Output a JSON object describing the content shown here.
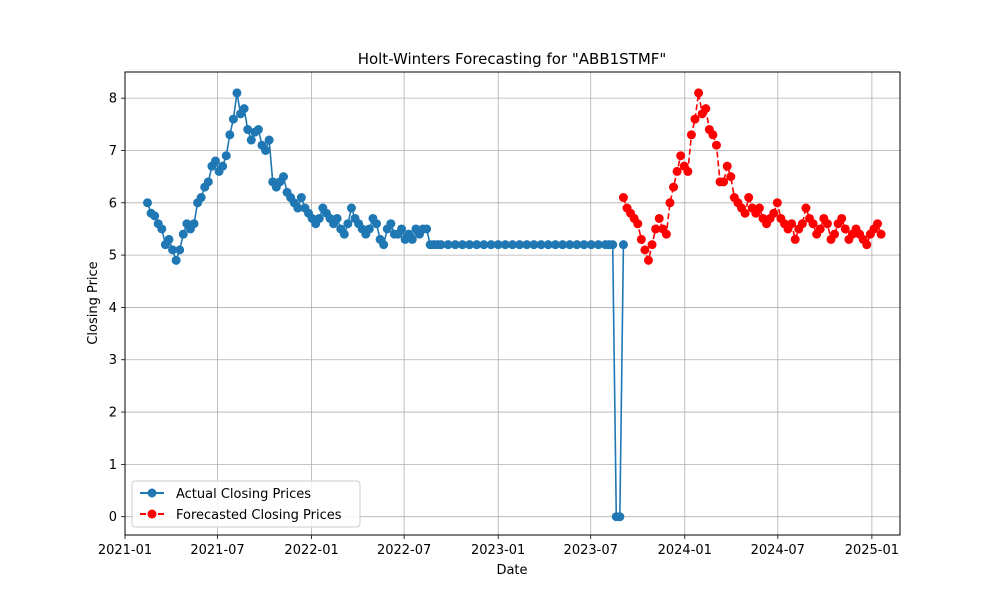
{
  "chart_data": {
    "type": "line",
    "title": "Holt-Winters Forecasting for \"ABB1STMF\"",
    "xlabel": "Date",
    "ylabel": "Closing Price",
    "x_type": "date",
    "xlim": [
      "2021-01-01",
      "2025-02-25"
    ],
    "ylim": [
      -0.35,
      8.5
    ],
    "x_ticks": [
      "2021-01",
      "2021-07",
      "2022-01",
      "2022-07",
      "2023-01",
      "2023-07",
      "2024-01",
      "2024-07",
      "2025-01"
    ],
    "y_ticks": [
      0,
      1,
      2,
      3,
      4,
      5,
      6,
      7,
      8
    ],
    "grid": true,
    "legend_position": "lower-left",
    "series": [
      {
        "name": "Actual Closing Prices",
        "color": "#1f77b4",
        "line_style": "solid",
        "marker": "circle",
        "x": [
          "2021-02-14",
          "2021-02-21",
          "2021-02-28",
          "2021-03-07",
          "2021-03-14",
          "2021-03-21",
          "2021-03-28",
          "2021-04-04",
          "2021-04-11",
          "2021-04-18",
          "2021-04-25",
          "2021-05-02",
          "2021-05-09",
          "2021-05-16",
          "2021-05-23",
          "2021-05-30",
          "2021-06-06",
          "2021-06-13",
          "2021-06-20",
          "2021-06-27",
          "2021-07-04",
          "2021-07-11",
          "2021-07-18",
          "2021-07-25",
          "2021-08-01",
          "2021-08-08",
          "2021-08-15",
          "2021-08-22",
          "2021-08-29",
          "2021-09-05",
          "2021-09-12",
          "2021-09-19",
          "2021-09-26",
          "2021-10-03",
          "2021-10-10",
          "2021-10-17",
          "2021-10-24",
          "2021-10-31",
          "2021-11-07",
          "2021-11-14",
          "2021-11-21",
          "2021-11-28",
          "2021-12-05",
          "2021-12-12",
          "2021-12-19",
          "2021-12-26",
          "2022-01-02",
          "2022-01-09",
          "2022-01-16",
          "2022-01-23",
          "2022-01-30",
          "2022-02-06",
          "2022-02-13",
          "2022-02-20",
          "2022-02-27",
          "2022-03-06",
          "2022-03-13",
          "2022-03-20",
          "2022-03-27",
          "2022-04-03",
          "2022-04-10",
          "2022-04-17",
          "2022-04-24",
          "2022-05-01",
          "2022-05-08",
          "2022-05-15",
          "2022-05-22",
          "2022-05-29",
          "2022-06-05",
          "2022-06-12",
          "2022-06-19",
          "2022-06-26",
          "2022-07-03",
          "2022-07-10",
          "2022-07-17",
          "2022-07-24",
          "2022-07-31",
          "2022-08-07",
          "2022-08-14",
          "2022-08-21",
          "2022-08-28",
          "2022-09-04",
          "2022-09-11",
          "2022-09-25",
          "2022-10-09",
          "2022-10-23",
          "2022-11-06",
          "2022-11-20",
          "2022-12-04",
          "2022-12-18",
          "2023-01-01",
          "2023-01-15",
          "2023-01-29",
          "2023-02-12",
          "2023-02-26",
          "2023-03-12",
          "2023-03-26",
          "2023-04-09",
          "2023-04-23",
          "2023-05-07",
          "2023-05-21",
          "2023-06-04",
          "2023-06-18",
          "2023-07-02",
          "2023-07-16",
          "2023-07-30",
          "2023-08-06",
          "2023-08-13",
          "2023-08-20",
          "2023-08-27",
          "2023-09-03"
        ],
        "y": [
          6.0,
          5.8,
          5.75,
          5.6,
          5.5,
          5.2,
          5.3,
          5.1,
          4.9,
          5.1,
          5.4,
          5.6,
          5.5,
          5.6,
          6.0,
          6.1,
          6.3,
          6.4,
          6.7,
          6.8,
          6.6,
          6.7,
          6.9,
          7.3,
          7.6,
          8.1,
          7.7,
          7.8,
          7.4,
          7.2,
          7.35,
          7.4,
          7.1,
          7.0,
          7.2,
          6.4,
          6.3,
          6.4,
          6.5,
          6.2,
          6.1,
          6.0,
          5.9,
          6.1,
          5.9,
          5.8,
          5.7,
          5.6,
          5.7,
          5.9,
          5.8,
          5.7,
          5.6,
          5.7,
          5.5,
          5.4,
          5.6,
          5.9,
          5.7,
          5.6,
          5.5,
          5.4,
          5.5,
          5.7,
          5.6,
          5.3,
          5.2,
          5.5,
          5.6,
          5.4,
          5.4,
          5.5,
          5.3,
          5.4,
          5.3,
          5.5,
          5.4,
          5.5,
          5.5,
          5.2,
          5.2,
          5.2,
          5.2,
          5.2,
          5.2,
          5.2,
          5.2,
          5.2,
          5.2,
          5.2,
          5.2,
          5.2,
          5.2,
          5.2,
          5.2,
          5.2,
          5.2,
          5.2,
          5.2,
          5.2,
          5.2,
          5.2,
          5.2,
          5.2,
          5.2,
          5.2,
          5.2,
          5.2,
          0.0,
          0.0,
          5.2
        ]
      },
      {
        "name": "Forecasted Closing Prices",
        "color": "#ff0000",
        "line_style": "dashed",
        "marker": "circle",
        "x": [
          "2023-09-03",
          "2023-09-10",
          "2023-09-17",
          "2023-09-24",
          "2023-10-01",
          "2023-10-08",
          "2023-10-15",
          "2023-10-22",
          "2023-10-29",
          "2023-11-05",
          "2023-11-12",
          "2023-11-19",
          "2023-11-26",
          "2023-12-03",
          "2023-12-10",
          "2023-12-17",
          "2023-12-24",
          "2023-12-31",
          "2024-01-07",
          "2024-01-14",
          "2024-01-21",
          "2024-01-28",
          "2024-02-04",
          "2024-02-11",
          "2024-02-18",
          "2024-02-25",
          "2024-03-03",
          "2024-03-10",
          "2024-03-17",
          "2024-03-24",
          "2024-03-31",
          "2024-04-07",
          "2024-04-14",
          "2024-04-21",
          "2024-04-28",
          "2024-05-05",
          "2024-05-12",
          "2024-05-19",
          "2024-05-26",
          "2024-06-02",
          "2024-06-09",
          "2024-06-16",
          "2024-06-23",
          "2024-06-30",
          "2024-07-07",
          "2024-07-14",
          "2024-07-21",
          "2024-07-28",
          "2024-08-04",
          "2024-08-11",
          "2024-08-18",
          "2024-08-25",
          "2024-09-01",
          "2024-09-08",
          "2024-09-15",
          "2024-09-22",
          "2024-09-29",
          "2024-10-06",
          "2024-10-13",
          "2024-10-20",
          "2024-10-27",
          "2024-11-03",
          "2024-11-10",
          "2024-11-17",
          "2024-11-24",
          "2024-12-01",
          "2024-12-08",
          "2024-12-15",
          "2024-12-22",
          "2024-12-29",
          "2025-01-05",
          "2025-01-12",
          "2025-01-19"
        ],
        "y": [
          6.1,
          5.9,
          5.8,
          5.7,
          5.6,
          5.3,
          5.1,
          4.9,
          5.2,
          5.5,
          5.7,
          5.5,
          5.4,
          6.0,
          6.3,
          6.6,
          6.9,
          6.7,
          6.6,
          7.3,
          7.6,
          8.1,
          7.7,
          7.8,
          7.4,
          7.3,
          7.1,
          6.4,
          6.4,
          6.7,
          6.5,
          6.1,
          6.0,
          5.9,
          5.8,
          6.1,
          5.9,
          5.8,
          5.9,
          5.7,
          5.6,
          5.7,
          5.8,
          6.0,
          5.7,
          5.6,
          5.5,
          5.6,
          5.3,
          5.5,
          5.6,
          5.9,
          5.7,
          5.6,
          5.4,
          5.5,
          5.7,
          5.6,
          5.3,
          5.4,
          5.6,
          5.7,
          5.5,
          5.3,
          5.4,
          5.5,
          5.4,
          5.3,
          5.2,
          5.4,
          5.5,
          5.6,
          5.4
        ]
      }
    ]
  }
}
